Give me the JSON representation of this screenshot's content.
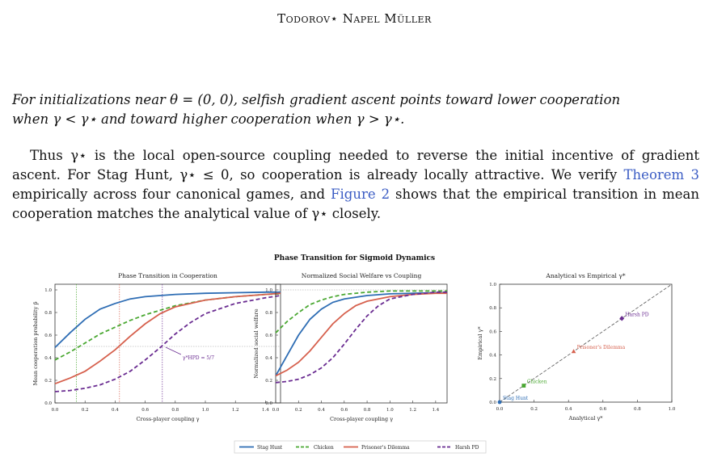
{
  "header": {
    "running_title": "Todorov⋆ Napel Müller"
  },
  "theorem": {
    "line1": "For initializations near θ = (0, 0), selfish gradient ascent points toward lower cooperation",
    "line2": "when γ < γ⋆ and toward higher cooperation when γ > γ⋆."
  },
  "body": {
    "line1": "Thus γ⋆ is the local open-source coupling needed to reverse the initial incentive of",
    "line2a": "gradient ascent. For Stag Hunt, γ⋆ ≤ 0, so cooperation is already locally attractive. We",
    "line3a": "verify ",
    "ref_theorem": "Theorem 3",
    "line3b": " empirically across four canonical games, and ",
    "ref_figure": "Figure 2",
    "line3c": " shows that the",
    "line4": "empirical transition in mean cooperation matches the analytical value of γ⋆ closely."
  },
  "figure": {
    "title": "Phase Transition for Sigmoid Dynamics"
  },
  "colors": {
    "stag": "#2e6db4",
    "chicken": "#4aa832",
    "pd": "#d6604d",
    "harsh": "#6a2c91"
  },
  "chart_data": [
    {
      "type": "line",
      "title": "Phase Transition in Cooperation",
      "xlabel": "Cross-player coupling γ",
      "ylabel": "Mean cooperation probability p̄",
      "xlim": [
        0,
        1.5
      ],
      "ylim": [
        0,
        1.05
      ],
      "xticks": [
        "0.0",
        "0.2",
        "0.4",
        "0.6",
        "0.8",
        "1.0",
        "1.2",
        "1.4"
      ],
      "yticks": [
        "0.0",
        "0.2",
        "0.4",
        "0.6",
        "0.8",
        "1.0"
      ],
      "annotation": "γ*HPD = 5/7",
      "vlines": [
        0.143,
        0.429,
        0.714
      ],
      "hline": 0.5,
      "series": [
        {
          "name": "Stag Hunt",
          "style": "solid",
          "x": [
            0,
            0.1,
            0.2,
            0.3,
            0.4,
            0.5,
            0.6,
            0.8,
            1.0,
            1.2,
            1.4,
            1.5
          ],
          "y": [
            0.49,
            0.62,
            0.74,
            0.83,
            0.88,
            0.92,
            0.94,
            0.96,
            0.97,
            0.975,
            0.98,
            0.98
          ]
        },
        {
          "name": "Chicken",
          "style": "dashed",
          "x": [
            0,
            0.1,
            0.2,
            0.3,
            0.4,
            0.5,
            0.6,
            0.8,
            1.0,
            1.2,
            1.4,
            1.5
          ],
          "y": [
            0.38,
            0.45,
            0.53,
            0.61,
            0.67,
            0.73,
            0.78,
            0.86,
            0.91,
            0.94,
            0.96,
            0.965
          ]
        },
        {
          "name": "Prisoner's Dilemma",
          "style": "solid",
          "x": [
            0,
            0.1,
            0.2,
            0.3,
            0.4,
            0.5,
            0.6,
            0.7,
            0.8,
            1.0,
            1.2,
            1.4,
            1.5
          ],
          "y": [
            0.17,
            0.22,
            0.28,
            0.37,
            0.47,
            0.59,
            0.7,
            0.79,
            0.85,
            0.91,
            0.94,
            0.96,
            0.97
          ]
        },
        {
          "name": "Harsh PD",
          "style": "dashed",
          "x": [
            0,
            0.1,
            0.2,
            0.3,
            0.4,
            0.5,
            0.6,
            0.7,
            0.8,
            0.9,
            1.0,
            1.2,
            1.4,
            1.5
          ],
          "y": [
            0.1,
            0.11,
            0.13,
            0.16,
            0.21,
            0.28,
            0.38,
            0.49,
            0.61,
            0.71,
            0.79,
            0.88,
            0.93,
            0.95
          ]
        }
      ]
    },
    {
      "type": "line",
      "title": "Normalized Social Welfare vs Coupling",
      "xlabel": "Cross-player coupling γ",
      "ylabel": "Normalized social welfare",
      "xlim": [
        0,
        1.5
      ],
      "ylim": [
        0,
        1.05
      ],
      "xticks": [
        "0.0",
        "0.2",
        "0.4",
        "0.6",
        "0.8",
        "1.0",
        "1.2",
        "1.4"
      ],
      "yticks": [
        "0.0",
        "0.2",
        "0.4",
        "0.6",
        "0.8",
        "1.0"
      ],
      "hline": 1.0,
      "series": [
        {
          "name": "Stag Hunt",
          "style": "solid",
          "x": [
            0,
            0.1,
            0.2,
            0.3,
            0.4,
            0.5,
            0.6,
            0.8,
            1.0,
            1.2,
            1.4,
            1.5
          ],
          "y": [
            0.24,
            0.42,
            0.6,
            0.74,
            0.83,
            0.89,
            0.92,
            0.95,
            0.965,
            0.97,
            0.975,
            0.975
          ]
        },
        {
          "name": "Chicken",
          "style": "dashed",
          "x": [
            0,
            0.1,
            0.2,
            0.3,
            0.4,
            0.5,
            0.6,
            0.8,
            1.0,
            1.2,
            1.4,
            1.5
          ],
          "y": [
            0.62,
            0.72,
            0.8,
            0.87,
            0.91,
            0.94,
            0.96,
            0.98,
            0.99,
            0.99,
            0.99,
            0.99
          ]
        },
        {
          "name": "Prisoner's Dilemma",
          "style": "solid",
          "x": [
            0,
            0.1,
            0.2,
            0.3,
            0.4,
            0.5,
            0.6,
            0.7,
            0.8,
            1.0,
            1.2,
            1.4,
            1.5
          ],
          "y": [
            0.24,
            0.29,
            0.36,
            0.46,
            0.58,
            0.7,
            0.79,
            0.86,
            0.9,
            0.94,
            0.96,
            0.97,
            0.97
          ]
        },
        {
          "name": "Harsh PD",
          "style": "dashed",
          "x": [
            0,
            0.1,
            0.2,
            0.3,
            0.4,
            0.5,
            0.6,
            0.7,
            0.8,
            0.9,
            1.0,
            1.2,
            1.4,
            1.5
          ],
          "y": [
            0.18,
            0.19,
            0.21,
            0.25,
            0.31,
            0.4,
            0.52,
            0.65,
            0.77,
            0.86,
            0.92,
            0.96,
            0.98,
            0.98
          ]
        }
      ]
    },
    {
      "type": "scatter",
      "title": "Analytical vs Empirical γ*",
      "xlabel": "Analytical γ*",
      "ylabel": "Empirical γ*",
      "xlim": [
        0,
        1
      ],
      "ylim": [
        0,
        1
      ],
      "xticks": [
        "0.0",
        "0.2",
        "0.4",
        "0.6",
        "0.8",
        "1.0"
      ],
      "yticks": [
        "0.0",
        "0.2",
        "0.4",
        "0.6",
        "0.8",
        "1.0"
      ],
      "points": [
        {
          "label": "Stag Hunt",
          "x": 0.0,
          "y": 0.0
        },
        {
          "label": "Chicken",
          "x": 0.14,
          "y": 0.14
        },
        {
          "label": "Prisoner's Dilemma",
          "x": 0.43,
          "y": 0.43
        },
        {
          "label": "Harsh PD",
          "x": 0.71,
          "y": 0.71
        }
      ]
    }
  ],
  "legend": [
    "Stag Hunt",
    "Chicken",
    "Prisoner's Dilemma",
    "Harsh PD"
  ]
}
